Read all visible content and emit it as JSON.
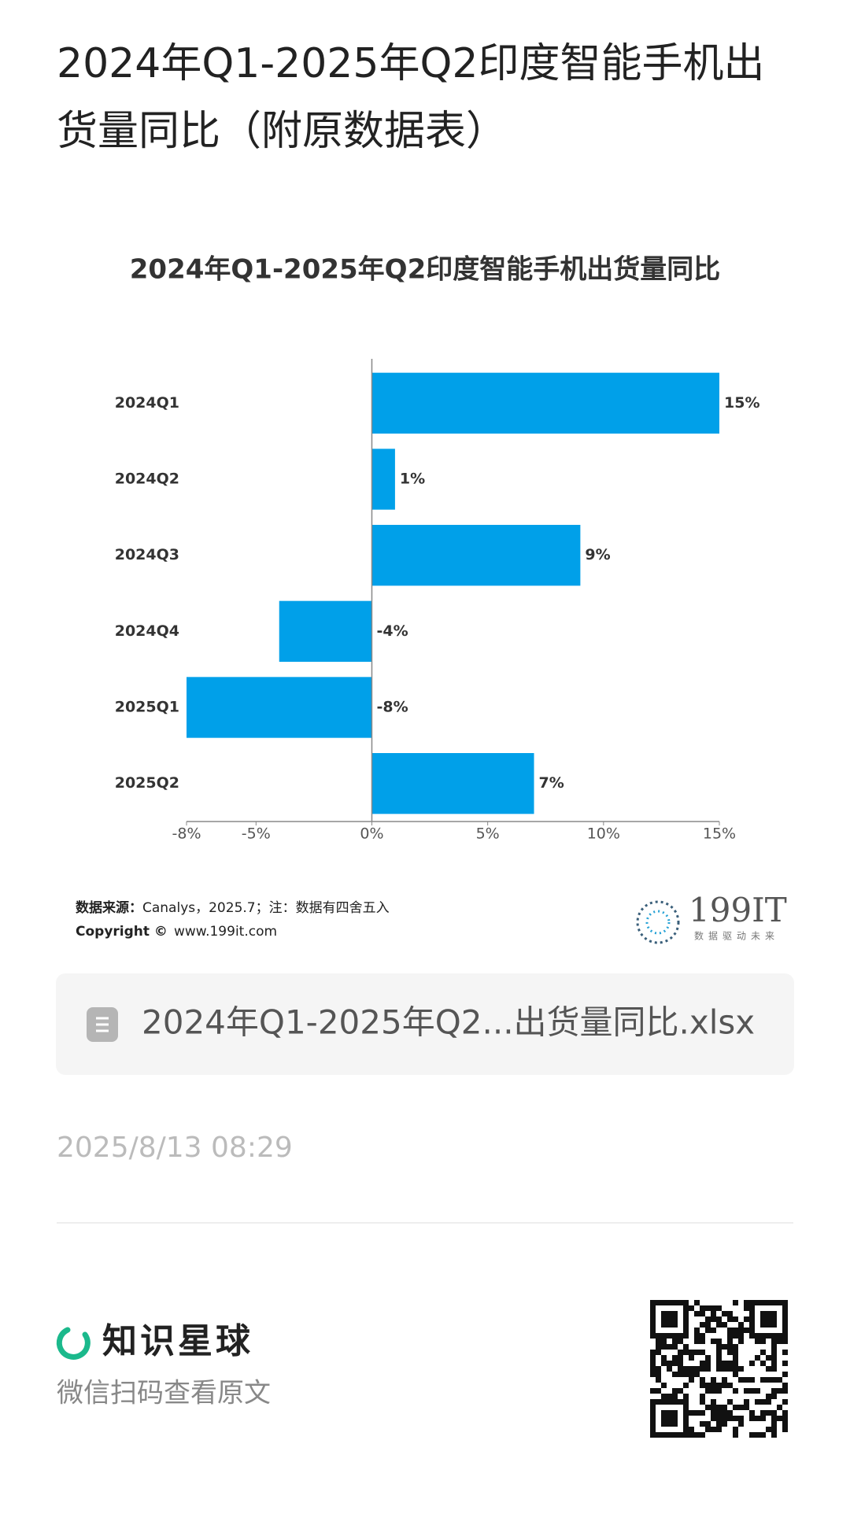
{
  "header": {
    "title": "2024年Q1-2025年Q2印度智能手机出货量同比（附原数据表）"
  },
  "chart_data": {
    "type": "barh",
    "title": "2024年Q1-2025年Q2印度智能手机出货量同比",
    "categories": [
      "2024Q1",
      "2024Q2",
      "2024Q3",
      "2024Q4",
      "2025Q1",
      "2025Q2"
    ],
    "values": [
      15,
      1,
      9,
      -4,
      -8,
      7
    ],
    "value_labels": [
      "15%",
      "1%",
      "9%",
      "-4%",
      "-8%",
      "7%"
    ],
    "color": "#00a0e9",
    "xlim": [
      -8,
      15
    ],
    "xticks": [
      {
        "value": -8,
        "label": "-8%"
      },
      {
        "value": -5,
        "label": "-5%"
      },
      {
        "value": 0,
        "label": "0%"
      },
      {
        "value": 5,
        "label": "5%"
      },
      {
        "value": 10,
        "label": "10%"
      },
      {
        "value": 15,
        "label": "15%"
      }
    ],
    "grid": false
  },
  "source": {
    "label": "数据来源：",
    "text": "Canalys，2025.7；注：数据有四舍五入",
    "copyright_label": "Copyright ©",
    "copyright_text": "www.199it.com"
  },
  "logo": {
    "text": "199IT",
    "tagline": "数据驱动未来"
  },
  "file_card": {
    "name": "2024年Q1-2025年Q2...出货量同比.xlsx"
  },
  "date": "2025/8/13 08:29",
  "footer": {
    "brand": "知识星球",
    "hint": "微信扫码查看原文"
  }
}
